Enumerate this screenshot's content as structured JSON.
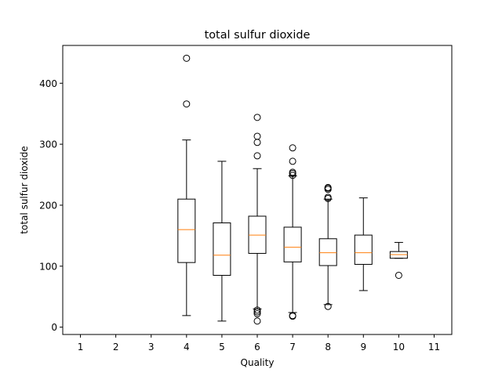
{
  "chart_data": {
    "type": "box",
    "title": "total sulfur dioxide",
    "xlabel": "Quality",
    "ylabel": "total sulfur dioxide",
    "x_ticks": [
      "1",
      "2",
      "3",
      "4",
      "5",
      "6",
      "7",
      "8",
      "9",
      "10",
      "11"
    ],
    "y_ticks": [
      0,
      100,
      200,
      300,
      400
    ],
    "ylim": [
      -12,
      462
    ],
    "xlim": [
      0.5,
      11.5
    ],
    "grid": false,
    "colors": {
      "median": "#ff7f0e",
      "box": "#000000"
    },
    "boxes": [
      {
        "x": 4,
        "whislo": 19,
        "q1": 106,
        "med": 160,
        "q3": 210,
        "whishi": 307,
        "fliers": [
          441,
          366
        ]
      },
      {
        "x": 5,
        "whislo": 10,
        "q1": 85,
        "med": 118,
        "q3": 171,
        "whishi": 272,
        "fliers": []
      },
      {
        "x": 6,
        "whislo": 30,
        "q1": 121,
        "med": 151,
        "q3": 182,
        "whishi": 260,
        "fliers": [
          344,
          313,
          303,
          281,
          28,
          25,
          22,
          10
        ]
      },
      {
        "x": 7,
        "whislo": 24,
        "q1": 107,
        "med": 131,
        "q3": 164,
        "whishi": 248,
        "fliers": [
          294,
          272,
          254,
          252,
          249,
          19,
          18
        ]
      },
      {
        "x": 8,
        "whislo": 37,
        "q1": 101,
        "med": 122,
        "q3": 145,
        "whishi": 210,
        "fliers": [
          229,
          228,
          226,
          213,
          211,
          34
        ]
      },
      {
        "x": 9,
        "whislo": 60,
        "q1": 103,
        "med": 122,
        "q3": 151,
        "whishi": 212,
        "fliers": []
      },
      {
        "x": 10,
        "whislo": 113,
        "q1": 113,
        "med": 119,
        "q3": 124,
        "whishi": 139,
        "fliers": [
          85
        ]
      }
    ]
  }
}
